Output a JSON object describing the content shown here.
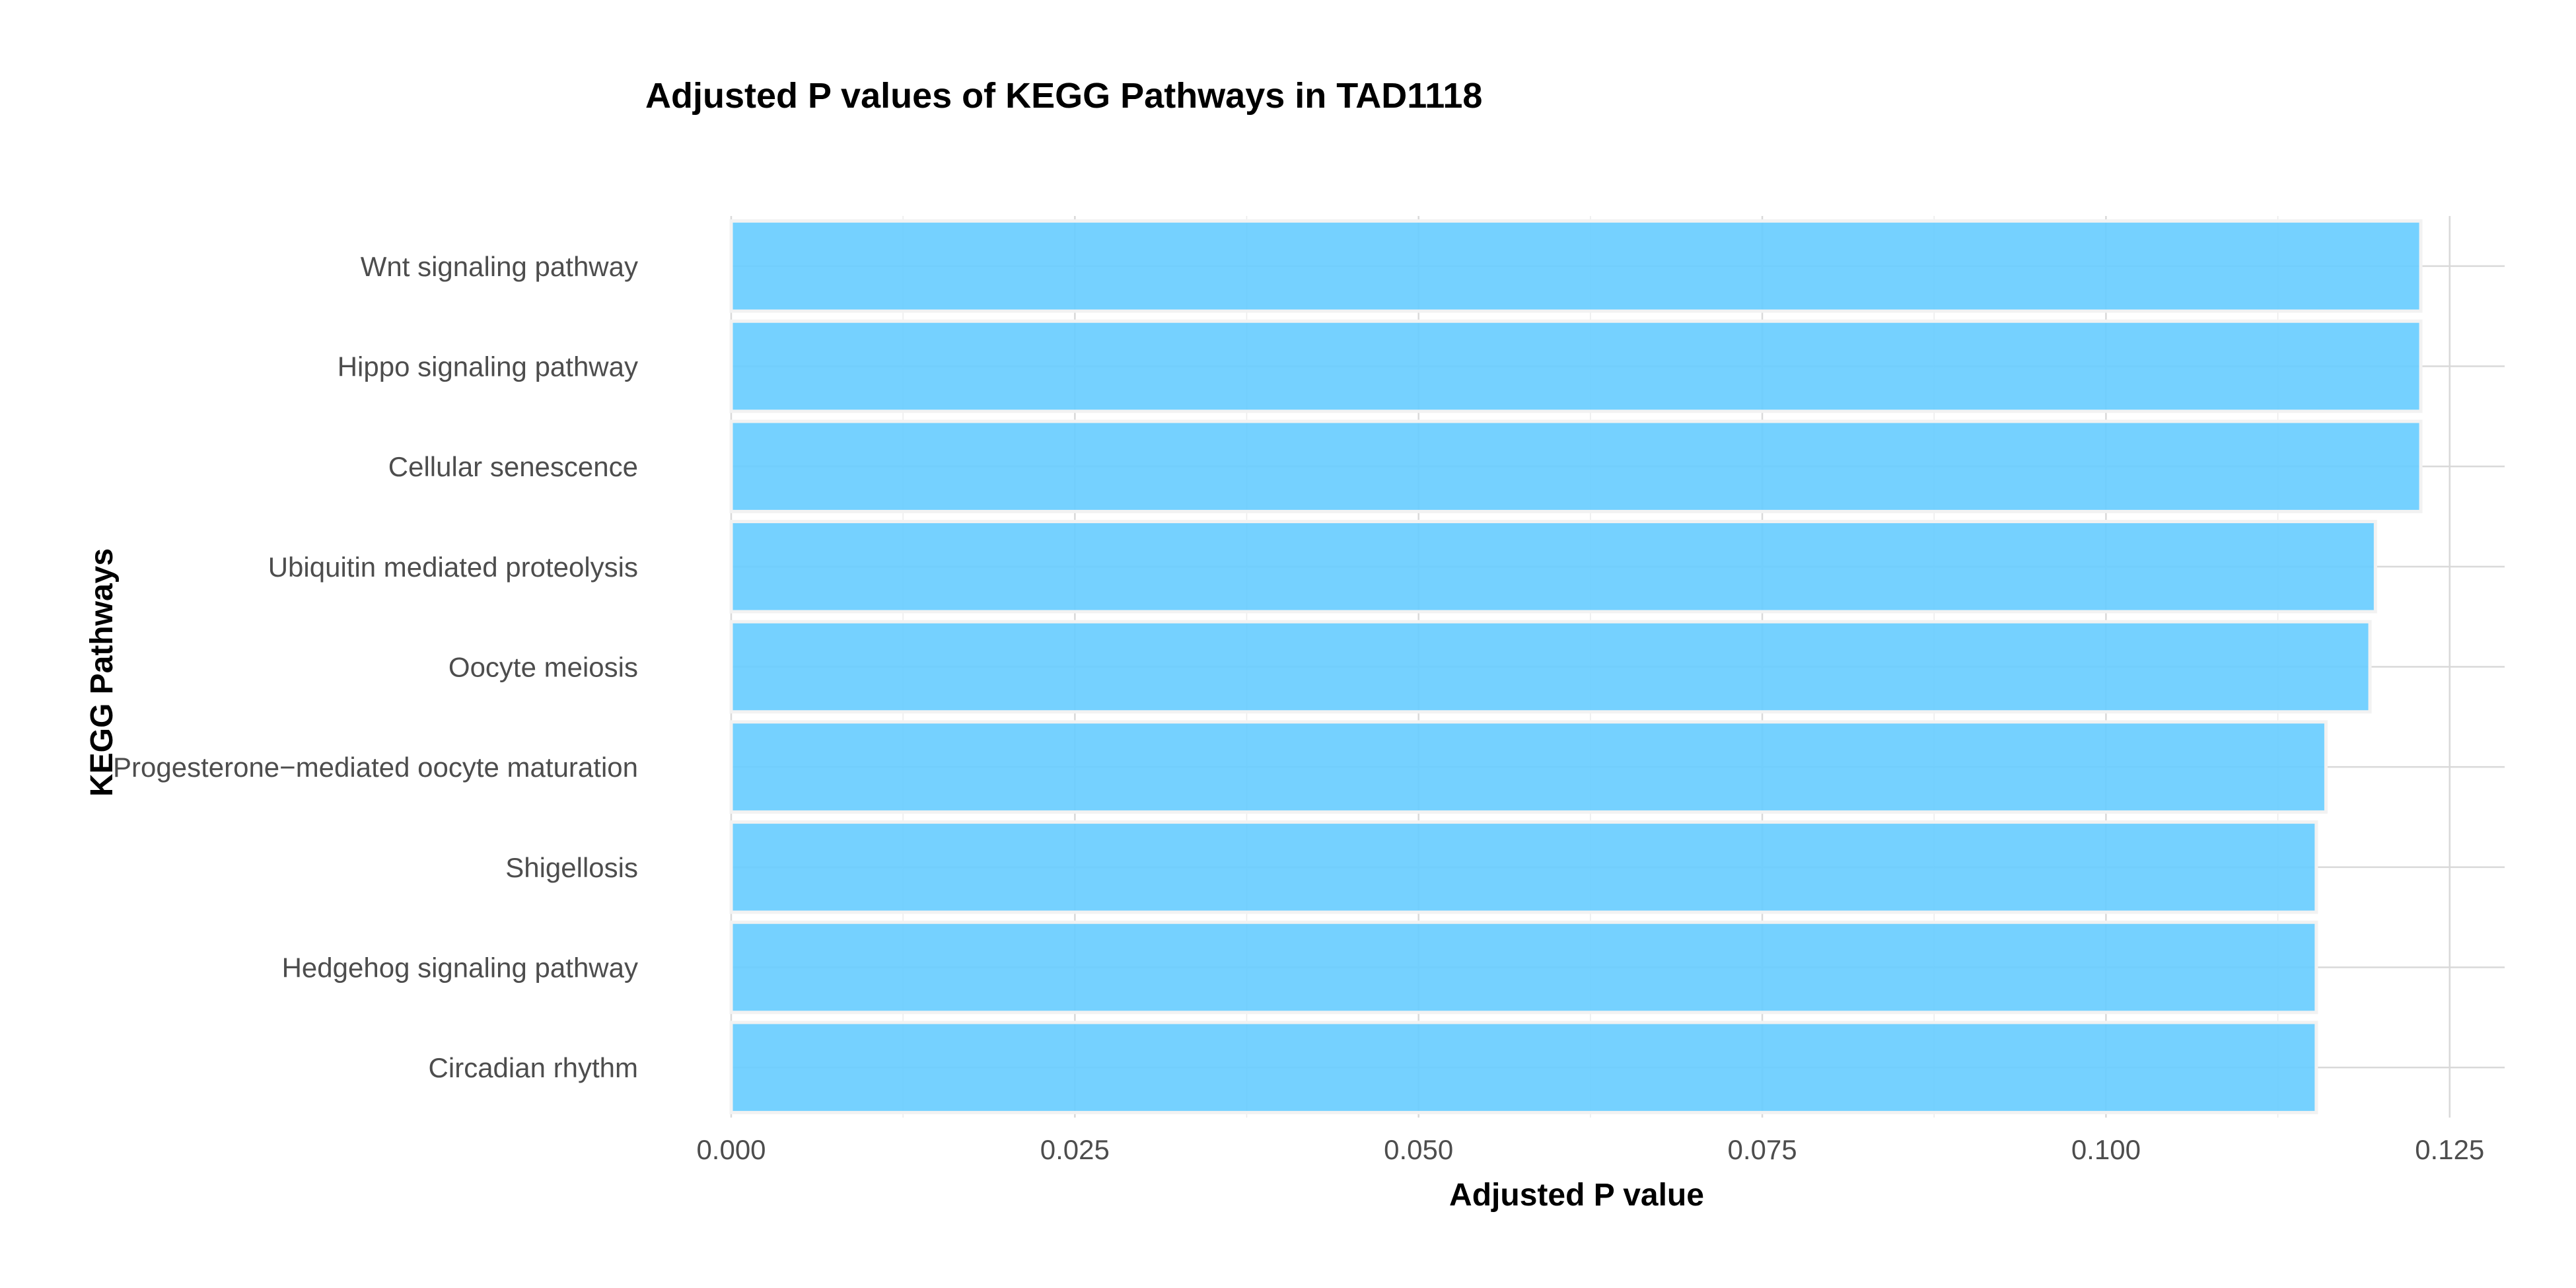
{
  "chart_data": {
    "type": "bar",
    "orientation": "horizontal",
    "title": "Adjusted P values of KEGG Pathways in TAD1118",
    "xlabel": "Adjusted P value",
    "ylabel": "KEGG Pathways",
    "xlim": [
      0,
      0.129
    ],
    "x_ticks": [
      "0.000",
      "0.025",
      "0.050",
      "0.075",
      "0.100",
      "0.125"
    ],
    "x_tick_values": [
      0,
      0.025,
      0.05,
      0.075,
      0.1,
      0.125
    ],
    "grid": true,
    "legend": "none",
    "bar_color": "#66CCFF",
    "categories": [
      "Wnt signaling pathway",
      "Hippo signaling pathway",
      "Cellular senescence",
      "Ubiquitin mediated proteolysis",
      "Oocyte meiosis",
      "Progesterone−mediated oocyte maturation",
      "Shigellosis",
      "Hedgehog signaling pathway",
      "Circadian rhythm"
    ],
    "values": [
      0.1229,
      0.1229,
      0.1229,
      0.1196,
      0.1192,
      0.116,
      0.1153,
      0.1153,
      0.1153
    ]
  }
}
